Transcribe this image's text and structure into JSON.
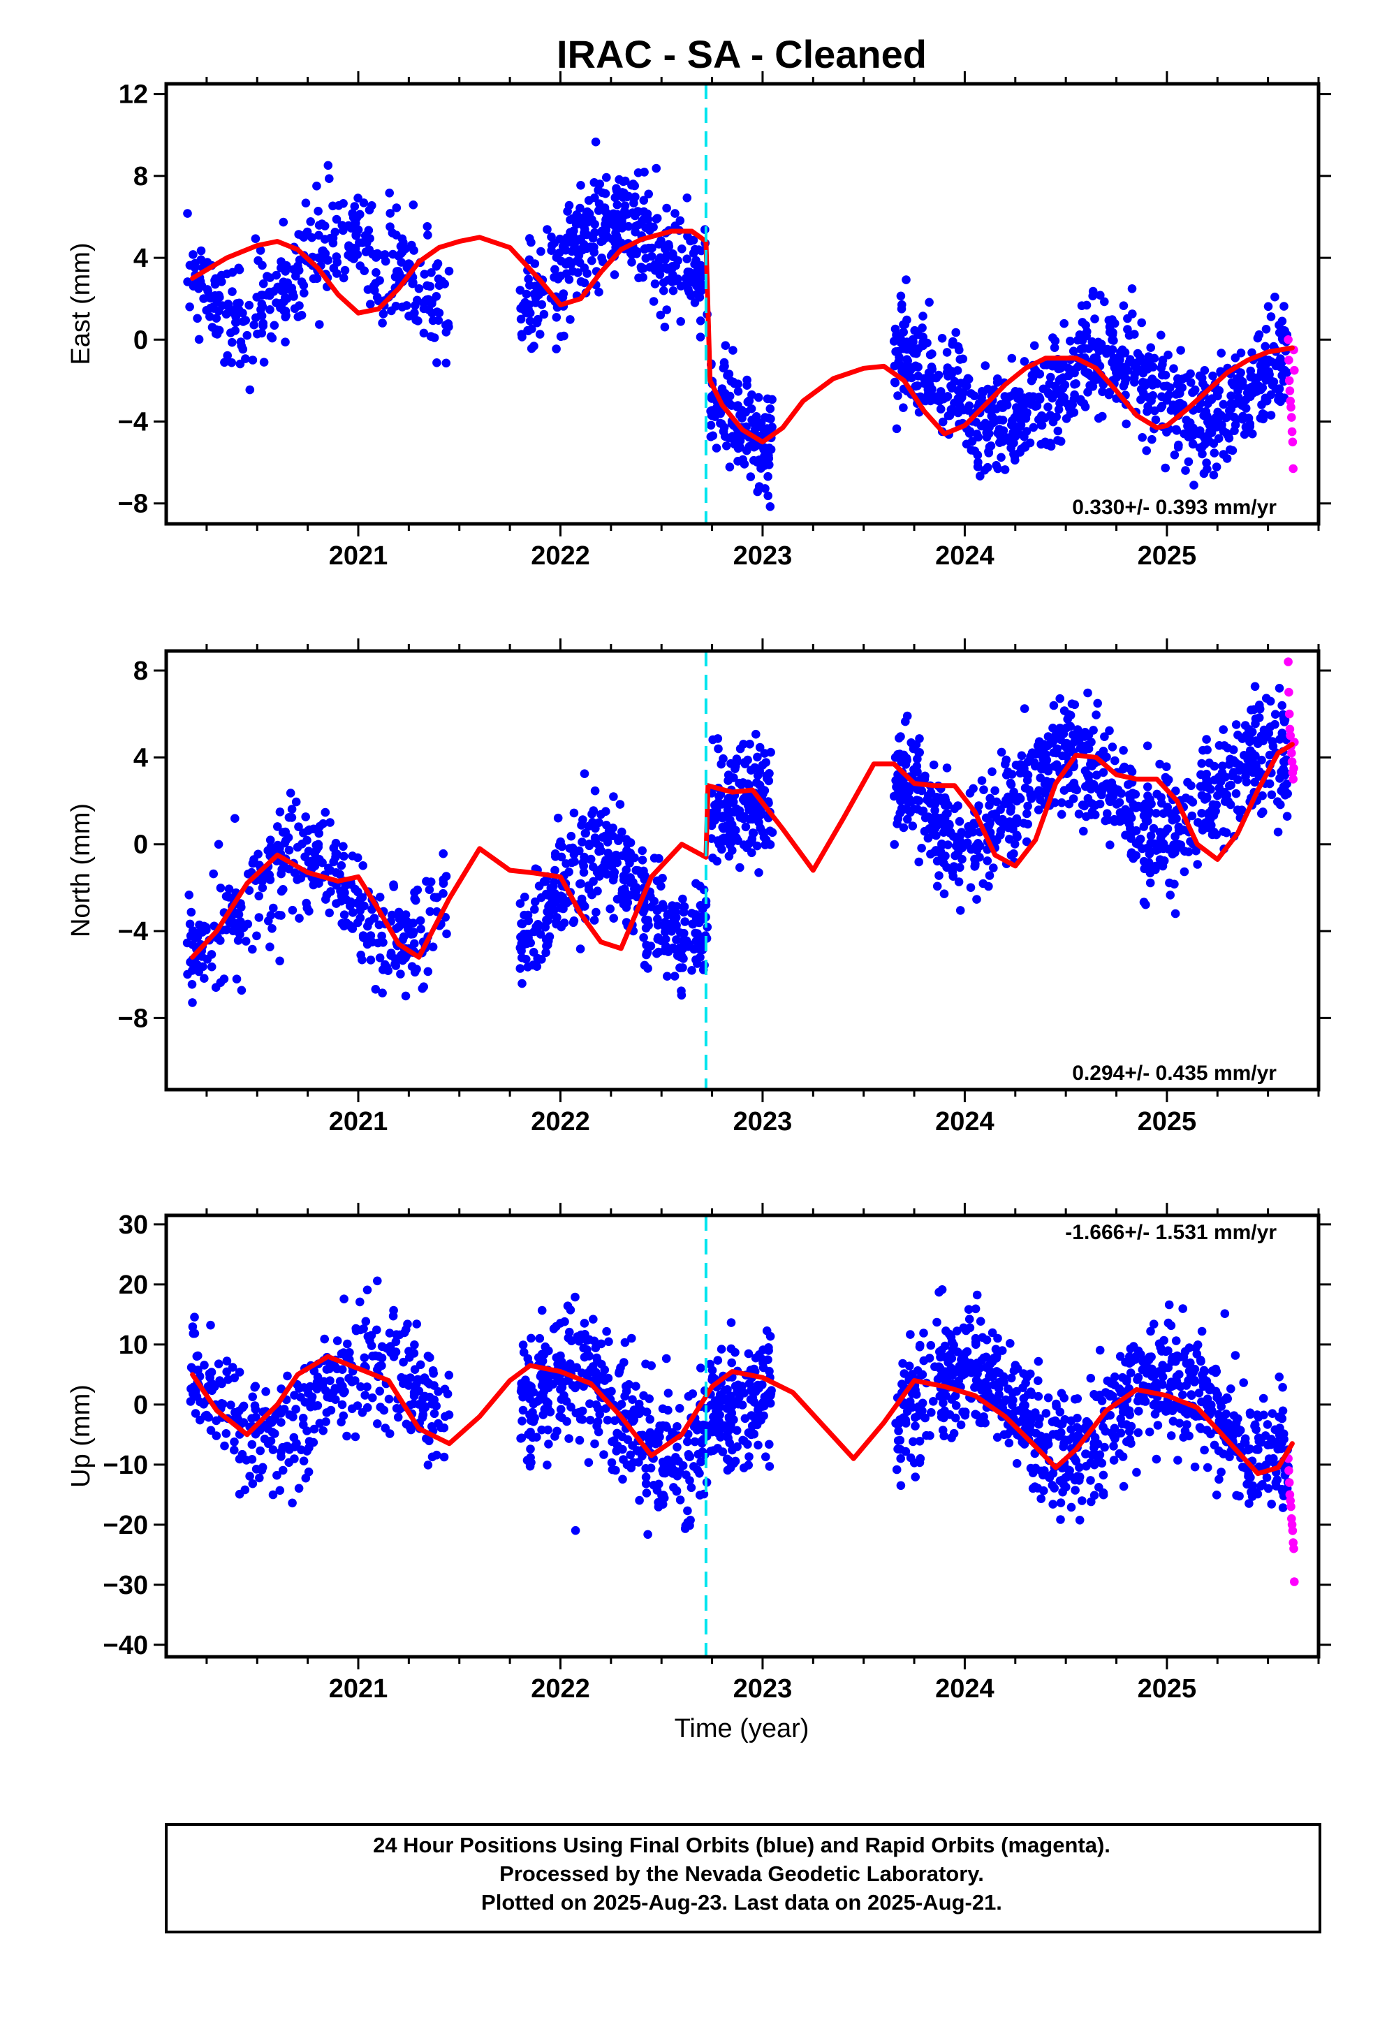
{
  "title": "IRAC  - SA - Cleaned",
  "xlabel": "Time (year)",
  "footer": [
    "24 Hour Positions Using Final Orbits (blue) and Rapid Orbits (magenta).",
    "Processed by the Nevada Geodetic Laboratory.",
    "Plotted on 2025-Aug-23. Last data on 2025-Aug-21."
  ],
  "colors": {
    "final": "#0000ff",
    "rapid": "#ff00ff",
    "model": "#ff0000",
    "equipment_change": "#00e5ee"
  },
  "chart_data": [
    {
      "type": "scatter",
      "ylabel": "East (mm)",
      "xlim": [
        2020.05,
        2025.75
      ],
      "ylim": [
        -9,
        12.5
      ],
      "xticks": [
        2021,
        2022,
        2023,
        2024,
        2025
      ],
      "yticks": [
        -8,
        -4,
        0,
        4,
        8,
        12
      ],
      "rate_label": "0.330+/- 0.393 mm/yr",
      "offset_epoch": 2022.72,
      "model": {
        "x": [
          2020.18,
          2020.35,
          2020.5,
          2020.6,
          2020.7,
          2020.8,
          2020.9,
          2021.0,
          2021.1,
          2021.2,
          2021.3,
          2021.4,
          2021.5,
          2021.6,
          2021.75,
          2021.9,
          2022.0,
          2022.1,
          2022.2,
          2022.3,
          2022.4,
          2022.55,
          2022.65,
          2022.72,
          2022.74,
          2022.8,
          2022.9,
          2023.0,
          2023.1,
          2023.2,
          2023.35,
          2023.5,
          2023.6,
          2023.7,
          2023.8,
          2023.9,
          2024.0,
          2024.1,
          2024.2,
          2024.3,
          2024.4,
          2024.55,
          2024.65,
          2024.75,
          2024.85,
          2024.95,
          2025.0,
          2025.1,
          2025.2,
          2025.3,
          2025.4,
          2025.5,
          2025.62
        ],
        "y": [
          3.0,
          4.0,
          4.6,
          4.8,
          4.4,
          3.5,
          2.2,
          1.3,
          1.5,
          2.5,
          3.8,
          4.5,
          4.8,
          5.0,
          4.5,
          2.9,
          1.7,
          2.0,
          3.3,
          4.4,
          4.9,
          5.3,
          5.3,
          4.8,
          -2.0,
          -3.2,
          -4.4,
          -5.0,
          -4.3,
          -3.0,
          -1.9,
          -1.4,
          -1.3,
          -2.0,
          -3.5,
          -4.6,
          -4.2,
          -3.2,
          -2.2,
          -1.4,
          -0.9,
          -0.9,
          -1.4,
          -2.5,
          -3.7,
          -4.3,
          -4.2,
          -3.4,
          -2.5,
          -1.6,
          -1.0,
          -0.6,
          -0.4
        ]
      },
      "segments": [
        {
          "x0": 2020.15,
          "x1": 2021.45,
          "amp": 1.8,
          "phase": 0.3,
          "base": 3.1,
          "trend": 0.3,
          "scatter": 1.4,
          "n": 360
        },
        {
          "x0": 2021.8,
          "x1": 2022.73,
          "amp": 1.9,
          "phase": 0.0,
          "base": 3.8,
          "trend": 1.8,
          "scatter": 1.3,
          "n": 380
        },
        {
          "x0": 2022.74,
          "x1": 2023.05,
          "amp": 1.0,
          "phase": 0.6,
          "base": -4.3,
          "trend": -1.0,
          "scatter": 1.2,
          "n": 160
        },
        {
          "x0": 2023.65,
          "x1": 2025.6,
          "amp": 1.7,
          "phase": 0.55,
          "base": -2.4,
          "trend": 0.5,
          "scatter": 1.3,
          "n": 820
        }
      ],
      "rapid": {
        "x0": 2025.6,
        "x1": 2025.63,
        "values": [
          0.0,
          -1.0,
          -2.0,
          -2.5,
          -3.0,
          -3.3,
          -3.8,
          -4.5,
          -5.0,
          -6.3,
          -0.5,
          -1.5
        ]
      }
    },
    {
      "type": "scatter",
      "ylabel": "North (mm)",
      "xlim": [
        2020.05,
        2025.75
      ],
      "ylim": [
        -11.3,
        8.9
      ],
      "xticks": [
        2021,
        2022,
        2023,
        2024,
        2025
      ],
      "yticks": [
        -8,
        -4,
        0,
        4,
        8
      ],
      "rate_label": "0.294+/- 0.435 mm/yr",
      "offset_epoch": 2022.72,
      "model": {
        "x": [
          2020.18,
          2020.3,
          2020.45,
          2020.6,
          2020.75,
          2020.9,
          2021.0,
          2021.1,
          2021.2,
          2021.3,
          2021.45,
          2021.6,
          2021.75,
          2021.85,
          2022.0,
          2022.1,
          2022.2,
          2022.3,
          2022.45,
          2022.6,
          2022.72,
          2022.73,
          2022.85,
          2022.95,
          2023.1,
          2023.25,
          2023.4,
          2023.55,
          2023.65,
          2023.75,
          2023.85,
          2023.95,
          2024.05,
          2024.15,
          2024.25,
          2024.35,
          2024.45,
          2024.55,
          2024.65,
          2024.75,
          2024.85,
          2024.95,
          2025.05,
          2025.15,
          2025.25,
          2025.35,
          2025.45,
          2025.55,
          2025.62
        ],
        "y": [
          -5.2,
          -4.0,
          -1.8,
          -0.5,
          -1.3,
          -1.7,
          -1.5,
          -3.0,
          -4.6,
          -5.2,
          -2.5,
          -0.2,
          -1.2,
          -1.3,
          -1.5,
          -3.2,
          -4.5,
          -4.8,
          -1.5,
          0.0,
          -0.6,
          2.7,
          2.4,
          2.5,
          0.7,
          -1.2,
          1.2,
          3.7,
          3.7,
          2.8,
          2.7,
          2.7,
          1.5,
          -0.5,
          -1.0,
          0.2,
          2.8,
          4.1,
          4.0,
          3.2,
          3.0,
          3.0,
          2.0,
          0.0,
          -0.7,
          0.5,
          2.5,
          4.2,
          4.6
        ]
      },
      "segments": [
        {
          "x0": 2020.15,
          "x1": 2021.45,
          "amp": 2.0,
          "phase": 0.55,
          "base": -2.6,
          "trend": 0.4,
          "scatter": 1.3,
          "n": 360
        },
        {
          "x0": 2021.8,
          "x1": 2022.73,
          "amp": 2.1,
          "phase": 0.1,
          "base": -2.6,
          "trend": 2.2,
          "scatter": 1.3,
          "n": 380
        },
        {
          "x0": 2022.74,
          "x1": 2023.05,
          "amp": 0.4,
          "phase": 0.0,
          "base": 2.0,
          "trend": 0.0,
          "scatter": 1.2,
          "n": 160
        },
        {
          "x0": 2023.65,
          "x1": 2025.6,
          "amp": 1.8,
          "phase": 0.75,
          "base": 2.2,
          "trend": 0.6,
          "scatter": 1.3,
          "n": 820
        }
      ],
      "rapid": {
        "x0": 2025.6,
        "x1": 2025.63,
        "values": [
          8.4,
          7.0,
          6.0,
          5.3,
          5.0,
          4.5,
          4.2,
          3.8,
          3.3,
          3.0,
          3.5,
          4.7
        ]
      }
    },
    {
      "type": "scatter",
      "ylabel": "Up (mm)",
      "xlim": [
        2020.05,
        2025.75
      ],
      "ylim": [
        -42,
        31.5
      ],
      "xticks": [
        2021,
        2022,
        2023,
        2024,
        2025
      ],
      "yticks": [
        -40,
        -30,
        -20,
        -10,
        0,
        10,
        20,
        30
      ],
      "rate_label": "-1.666+/- 1.531 mm/yr",
      "offset_epoch": 2022.72,
      "model": {
        "x": [
          2020.18,
          2020.3,
          2020.45,
          2020.6,
          2020.7,
          2020.85,
          2021.0,
          2021.15,
          2021.3,
          2021.45,
          2021.6,
          2021.75,
          2021.85,
          2022.0,
          2022.15,
          2022.3,
          2022.45,
          2022.6,
          2022.75,
          2022.85,
          2023.0,
          2023.15,
          2023.3,
          2023.45,
          2023.6,
          2023.75,
          2023.9,
          2024.05,
          2024.2,
          2024.35,
          2024.45,
          2024.55,
          2024.7,
          2024.85,
          2025.0,
          2025.15,
          2025.3,
          2025.45,
          2025.55,
          2025.62
        ],
        "y": [
          5.0,
          -1.0,
          -5.0,
          0.0,
          5.0,
          8.0,
          6.0,
          4.0,
          -4.0,
          -6.5,
          -2.0,
          4.0,
          6.5,
          5.5,
          3.5,
          -2.0,
          -8.5,
          -5.0,
          3.0,
          5.5,
          4.5,
          2.0,
          -3.5,
          -9.0,
          -3.0,
          4.0,
          3.0,
          1.5,
          -2.0,
          -7.0,
          -10.5,
          -7.5,
          -1.0,
          2.5,
          1.5,
          -0.5,
          -6.0,
          -11.5,
          -10.5,
          -6.5
        ]
      },
      "segments": [
        {
          "x0": 2020.15,
          "x1": 2021.45,
          "amp": 7.0,
          "phase": 0.2,
          "base": 1.0,
          "trend": 0.0,
          "scatter": 5.0,
          "n": 360
        },
        {
          "x0": 2021.8,
          "x1": 2022.73,
          "amp": 7.0,
          "phase": 0.2,
          "base": -1.5,
          "trend": 0.0,
          "scatter": 5.5,
          "n": 380
        },
        {
          "x0": 2022.74,
          "x1": 2023.05,
          "amp": 2.0,
          "phase": 0.0,
          "base": 1.0,
          "trend": 0.0,
          "scatter": 5.0,
          "n": 160
        },
        {
          "x0": 2023.65,
          "x1": 2025.6,
          "amp": 6.5,
          "phase": 0.25,
          "base": -1.5,
          "trend": -3.0,
          "scatter": 5.0,
          "n": 820
        }
      ],
      "rapid": {
        "x0": 2025.6,
        "x1": 2025.63,
        "values": [
          -9.0,
          -11.0,
          -13.0,
          -15.0,
          -16.0,
          -17.0,
          -19.0,
          -20.0,
          -21.0,
          -23.0,
          -24.0,
          -29.5
        ]
      }
    }
  ]
}
